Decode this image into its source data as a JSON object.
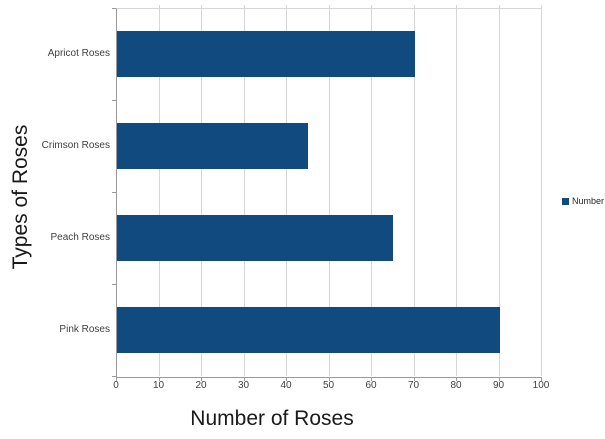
{
  "chart_data": {
    "type": "bar",
    "orientation": "horizontal",
    "categories": [
      "Apricot Roses",
      "Crimson Roses",
      "Peach Roses",
      "Pink Roses"
    ],
    "series": [
      {
        "name": "Number",
        "values": [
          70,
          45,
          65,
          90
        ]
      }
    ],
    "xlabel": "Number of Roses",
    "ylabel": "Types of Roses",
    "xlim": [
      0,
      100
    ],
    "xticks": [
      0,
      10,
      20,
      30,
      40,
      50,
      60,
      70,
      80,
      90,
      100
    ],
    "grid": true,
    "legend_position": "right",
    "colors": {
      "bar": "#114A7E",
      "gridline": "#D6D6D6",
      "axis": "#9A9A9A",
      "tick_label": "#3F3F3F",
      "axis_title": "#1A1A1A",
      "background": "#FFFFFF"
    }
  }
}
